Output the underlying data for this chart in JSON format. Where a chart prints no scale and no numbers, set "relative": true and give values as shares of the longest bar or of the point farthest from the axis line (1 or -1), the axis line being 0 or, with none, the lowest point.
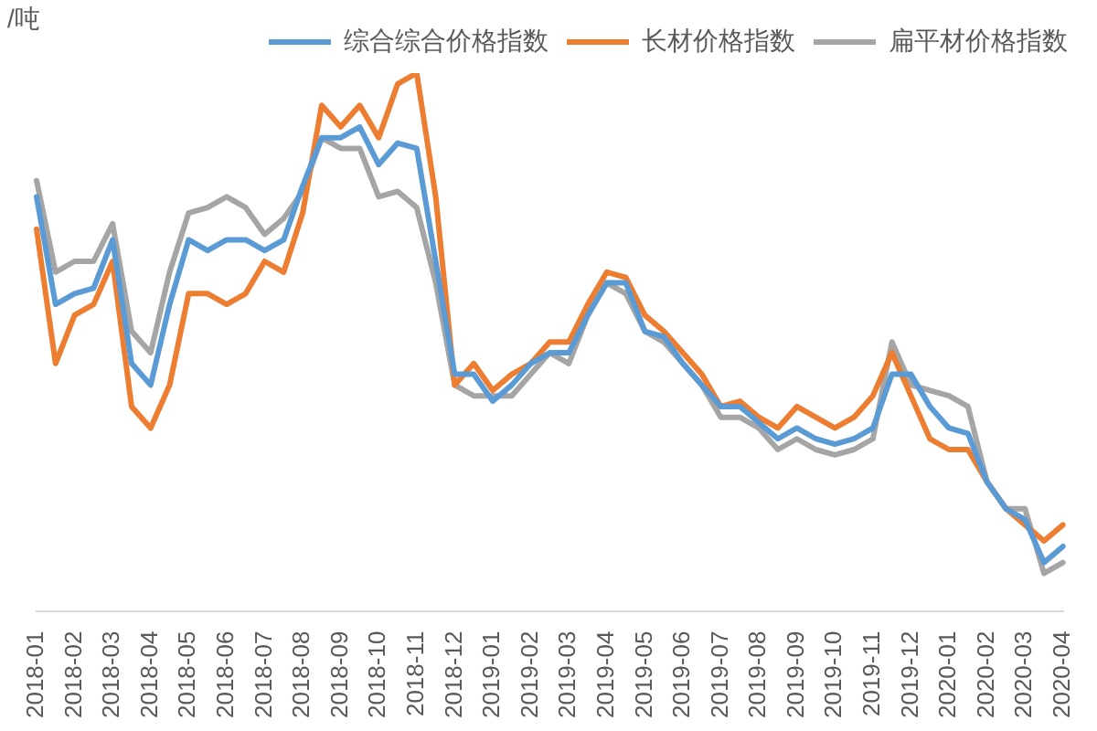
{
  "chart_data": {
    "type": "line",
    "relative": true,
    "ylabel": "/吨",
    "legend": "top",
    "marker": "none",
    "line_style": "solid",
    "categories": [
      "2018-01",
      null,
      "2018-02",
      null,
      "2018-03",
      null,
      "2018-04",
      null,
      "2018-05",
      null,
      "2018-06",
      null,
      "2018-07",
      null,
      "2018-08",
      null,
      "2018-09",
      null,
      "2018-10",
      null,
      "2018-11",
      null,
      "2018-12",
      null,
      "2019-01",
      null,
      "2019-02",
      null,
      "2019-03",
      null,
      "2019-04",
      null,
      "2019-05",
      null,
      "2019-06",
      null,
      "2019-07",
      null,
      "2019-08",
      null,
      "2019-09",
      null,
      "2019-10",
      null,
      "2019-11",
      null,
      "2019-12",
      null,
      "2020-01",
      null,
      "2020-02",
      null,
      "2020-03",
      null,
      "2020-04"
    ],
    "series": [
      {
        "name": "综合综合价格指数",
        "color": "#5b9bd5",
        "values": [
          0.77,
          0.57,
          0.59,
          0.6,
          0.69,
          0.46,
          0.42,
          0.57,
          0.69,
          0.67,
          0.69,
          0.69,
          0.67,
          0.69,
          0.79,
          0.88,
          0.88,
          0.9,
          0.83,
          0.87,
          0.86,
          0.65,
          0.44,
          0.44,
          0.39,
          0.42,
          0.46,
          0.48,
          0.48,
          0.55,
          0.61,
          0.61,
          0.52,
          0.51,
          0.46,
          0.42,
          0.38,
          0.38,
          0.35,
          0.32,
          0.34,
          0.32,
          0.31,
          0.32,
          0.34,
          0.44,
          0.44,
          0.38,
          0.34,
          0.33,
          0.24,
          0.19,
          0.17,
          0.09,
          0.12
        ]
      },
      {
        "name": "长材价格指数",
        "color": "#ed7d31",
        "values": [
          0.71,
          0.46,
          0.55,
          0.57,
          0.65,
          0.38,
          0.34,
          0.42,
          0.59,
          0.59,
          0.57,
          0.59,
          0.65,
          0.63,
          0.74,
          0.94,
          0.9,
          0.94,
          0.88,
          0.98,
          1.0,
          0.77,
          0.42,
          0.46,
          0.41,
          0.44,
          0.46,
          0.5,
          0.5,
          0.57,
          0.63,
          0.62,
          0.55,
          0.52,
          0.48,
          0.44,
          0.38,
          0.39,
          0.36,
          0.34,
          0.38,
          0.36,
          0.34,
          0.36,
          0.4,
          0.48,
          0.4,
          0.32,
          0.3,
          0.3,
          0.24,
          0.19,
          0.16,
          0.13,
          0.16
        ]
      },
      {
        "name": "扁平材价格指数",
        "color": "#a5a5a5",
        "values": [
          0.8,
          0.63,
          0.65,
          0.65,
          0.72,
          0.52,
          0.48,
          0.63,
          0.74,
          0.75,
          0.77,
          0.75,
          0.7,
          0.73,
          0.78,
          0.88,
          0.86,
          0.86,
          0.77,
          0.78,
          0.75,
          0.61,
          0.42,
          0.4,
          0.4,
          0.4,
          0.44,
          0.48,
          0.46,
          0.55,
          0.61,
          0.59,
          0.52,
          0.5,
          0.46,
          0.42,
          0.36,
          0.36,
          0.34,
          0.3,
          0.32,
          0.3,
          0.29,
          0.3,
          0.32,
          0.5,
          0.42,
          0.41,
          0.4,
          0.38,
          0.24,
          0.19,
          0.19,
          0.07,
          0.09
        ]
      }
    ]
  }
}
